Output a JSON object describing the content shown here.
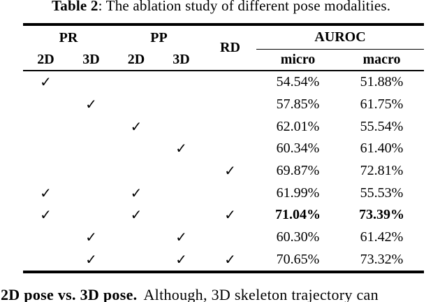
{
  "caption": {
    "bold": "Table 2",
    "rest": ": The ablation study of different pose modalities."
  },
  "table": {
    "header": {
      "pr": "PR",
      "pp": "PP",
      "rd": "RD",
      "auroc": "AUROC",
      "pr_2d": "2D",
      "pr_3d": "3D",
      "pp_2d": "2D",
      "pp_3d": "3D",
      "micro": "micro",
      "macro": "macro"
    },
    "check_glyph": "✓",
    "rows": [
      {
        "cells": [
          "✓",
          "",
          "",
          "",
          "",
          "54.54%",
          "51.88%"
        ]
      },
      {
        "cells": [
          "",
          "✓",
          "",
          "",
          "",
          "57.85%",
          "61.75%"
        ]
      },
      {
        "cells": [
          "",
          "",
          "✓",
          "",
          "",
          "62.01%",
          "55.54%"
        ]
      },
      {
        "cells": [
          "",
          "",
          "",
          "✓",
          "",
          "60.34%",
          "61.40%"
        ]
      },
      {
        "cells": [
          "",
          "",
          "",
          "",
          "✓",
          "69.87%",
          "72.81%"
        ]
      },
      {
        "cells": [
          "✓",
          "",
          "✓",
          "",
          "",
          "61.99%",
          "55.53%"
        ]
      },
      {
        "cells": [
          "✓",
          "",
          "✓",
          "",
          "✓",
          "71.04%",
          "73.39%"
        ]
      },
      {
        "cells": [
          "",
          "✓",
          "",
          "✓",
          "",
          "60.30%",
          "61.42%"
        ]
      },
      {
        "cells": [
          "",
          "✓",
          "",
          "✓",
          "✓",
          "70.65%",
          "73.32%"
        ]
      }
    ],
    "bold_row_index": 6
  },
  "body_text": {
    "bold": "2D pose vs. 3D pose.",
    "rest": "Although, 3D skeleton trajectory can"
  }
}
